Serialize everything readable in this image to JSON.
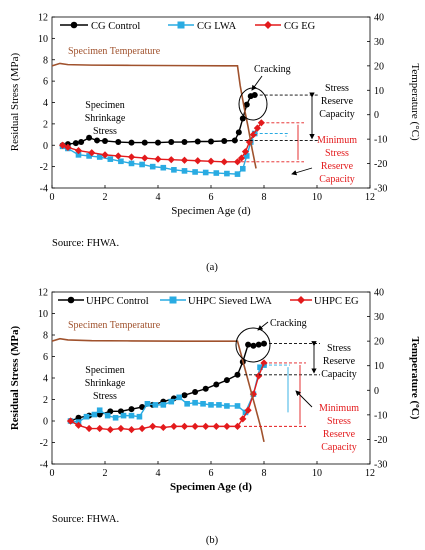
{
  "chart_data": [
    {
      "type": "line",
      "panel_label": "(a)",
      "source": "Source: FHWA.",
      "xlabel": "Specimen Age (d)",
      "ylabel": "Residual Stress (MPa)",
      "y2label": "Temperature (°C)",
      "xlim": [
        0,
        12
      ],
      "ylim": [
        -4,
        12
      ],
      "y2lim": [
        -30,
        40
      ],
      "xticks": [
        "0",
        "2",
        "4",
        "6",
        "8",
        "10",
        "12"
      ],
      "yticks": [
        "12",
        "10",
        "8",
        "6",
        "4",
        "2",
        "0",
        "-2",
        "-4"
      ],
      "y2ticks": [
        "40",
        "30",
        "20",
        "10",
        "0",
        "-10",
        "-20",
        "-30"
      ],
      "legend_placement": "top",
      "series": [
        {
          "name": "CG Control",
          "color": "#000000",
          "marker": "circle",
          "x": [
            0.4,
            0.6,
            0.9,
            1.1,
            1.4,
            1.7,
            2.0,
            2.5,
            3.0,
            3.5,
            4.0,
            4.5,
            5.0,
            5.5,
            6.0,
            6.5,
            6.9,
            7.05,
            7.2,
            7.35,
            7.5,
            7.65
          ],
          "y": [
            0,
            0.1,
            0.2,
            0.3,
            0.7,
            0.45,
            0.4,
            0.3,
            0.25,
            0.25,
            0.25,
            0.3,
            0.3,
            0.35,
            0.35,
            0.4,
            0.45,
            1.2,
            2.5,
            3.8,
            4.6,
            4.7
          ]
        },
        {
          "name": "CG LWA",
          "color": "#29abe2",
          "marker": "square",
          "x": [
            0.4,
            0.6,
            1.0,
            1.4,
            1.8,
            2.2,
            2.6,
            3.0,
            3.4,
            3.8,
            4.2,
            4.6,
            5.0,
            5.4,
            5.8,
            6.2,
            6.6,
            7.0,
            7.2,
            7.35,
            7.5,
            7.65
          ],
          "y": [
            -0.1,
            -0.3,
            -0.9,
            -1.0,
            -1.1,
            -1.3,
            -1.5,
            -1.7,
            -1.8,
            -2.0,
            -2.1,
            -2.3,
            -2.4,
            -2.5,
            -2.55,
            -2.6,
            -2.65,
            -2.7,
            -2.2,
            -1.0,
            0.3,
            1.1
          ]
        },
        {
          "name": "CG EG",
          "color": "#e31a1c",
          "marker": "diamond",
          "x": [
            0.4,
            0.6,
            1.0,
            1.5,
            2.0,
            2.5,
            3.0,
            3.5,
            4.0,
            4.5,
            5.0,
            5.5,
            6.0,
            6.5,
            7.0,
            7.15,
            7.3,
            7.45,
            7.6,
            7.75,
            7.9
          ],
          "y": [
            0,
            -0.2,
            -0.5,
            -0.7,
            -0.9,
            -1.0,
            -1.1,
            -1.2,
            -1.3,
            -1.35,
            -1.4,
            -1.45,
            -1.5,
            -1.55,
            -1.55,
            -1.2,
            -0.6,
            0.3,
            1.0,
            1.6,
            2.1
          ]
        },
        {
          "name": "Specimen Temperature",
          "axis": "right",
          "color": "#a0522d",
          "marker": "none",
          "x": [
            0,
            0.3,
            0.6,
            1.5,
            3,
            5,
            6.5,
            7.0,
            7.1,
            7.25,
            7.4,
            7.55,
            7.7
          ],
          "y": [
            20,
            21,
            20.5,
            20.3,
            20.2,
            20.1,
            20,
            20,
            12,
            3,
            -5,
            -14,
            -22
          ]
        }
      ],
      "annotations": {
        "cracking": "Cracking",
        "shrinkage": [
          "Specimen",
          "Shrinkage",
          "Stress"
        ],
        "reserve": [
          "Stress",
          "Reserve",
          "Capacity"
        ],
        "min_reserve": [
          "Minimum",
          "Stress",
          "Reserve",
          "Capacity"
        ]
      },
      "reserve_levels": {
        "control_peak": 4.7,
        "lwa_peak": 1.1,
        "eg_peak": 2.1,
        "eg_base": -1.55,
        "control_base": 0.45
      }
    },
    {
      "type": "line",
      "panel_label": "(b)",
      "source": "Source: FHWA.",
      "xlabel": "Specimen Age (d)",
      "ylabel": "Residual Stress (MPa)",
      "y2label": "Temperature (ºC)",
      "xlim": [
        0,
        12
      ],
      "ylim": [
        -4,
        12
      ],
      "y2lim": [
        -30,
        40
      ],
      "xticks": [
        "0",
        "2",
        "4",
        "6",
        "8",
        "10",
        "12"
      ],
      "yticks": [
        "12",
        "10",
        "8",
        "6",
        "4",
        "2",
        "0",
        "-2",
        "-4"
      ],
      "y2ticks": [
        "40",
        "30",
        "20",
        "10",
        "0",
        "-10",
        "-20",
        "-30"
      ],
      "legend_placement": "top",
      "series": [
        {
          "name": "UHPC Control",
          "color": "#000000",
          "marker": "circle",
          "x": [
            0.7,
            1.0,
            1.4,
            1.8,
            2.2,
            2.6,
            3.0,
            3.4,
            3.8,
            4.2,
            4.6,
            5.0,
            5.4,
            5.8,
            6.2,
            6.6,
            7.0,
            7.2,
            7.4,
            7.6,
            7.8,
            8.0
          ],
          "y": [
            0,
            0.3,
            0.5,
            0.6,
            0.9,
            0.9,
            1.1,
            1.3,
            1.5,
            1.8,
            2.1,
            2.4,
            2.7,
            3.0,
            3.4,
            3.8,
            4.3,
            5.5,
            7.1,
            7.0,
            7.1,
            7.2
          ]
        },
        {
          "name": "UHPC Sieved LWA",
          "color": "#29abe2",
          "marker": "square",
          "x": [
            0.7,
            1.0,
            1.3,
            1.6,
            1.8,
            2.1,
            2.4,
            2.7,
            3.0,
            3.3,
            3.6,
            3.9,
            4.2,
            4.5,
            4.8,
            5.1,
            5.4,
            5.7,
            6.0,
            6.3,
            6.6,
            7.0,
            7.3,
            7.6,
            7.85,
            8.0
          ],
          "y": [
            0,
            -0.1,
            0.4,
            0.6,
            1.0,
            0.5,
            0.3,
            0.5,
            0.5,
            0.4,
            1.6,
            1.5,
            1.5,
            1.8,
            2.2,
            1.6,
            1.7,
            1.6,
            1.5,
            1.5,
            1.4,
            1.4,
            0.8,
            2.5,
            5.0,
            5.2
          ]
        },
        {
          "name": "UHPC EG",
          "color": "#e31a1c",
          "marker": "diamond",
          "x": [
            0.7,
            1.0,
            1.4,
            1.8,
            2.2,
            2.6,
            3.0,
            3.4,
            3.8,
            4.2,
            4.6,
            5.0,
            5.4,
            5.8,
            6.2,
            6.6,
            7.0,
            7.2,
            7.4,
            7.6,
            7.8,
            8.0
          ],
          "y": [
            0,
            -0.4,
            -0.7,
            -0.7,
            -0.8,
            -0.7,
            -0.8,
            -0.7,
            -0.5,
            -0.6,
            -0.5,
            -0.5,
            -0.5,
            -0.5,
            -0.5,
            -0.5,
            -0.5,
            0.2,
            1.0,
            2.5,
            4.2,
            5.4
          ]
        },
        {
          "name": "Specimen Temperature",
          "axis": "right",
          "color": "#a0522d",
          "marker": "none",
          "x": [
            0,
            0.3,
            0.6,
            1.5,
            3,
            5,
            6.5,
            7.0,
            7.1,
            7.3,
            7.5,
            7.7,
            7.9,
            8.0
          ],
          "y": [
            20,
            21,
            20.5,
            20.2,
            20.1,
            20,
            20,
            20,
            16,
            8,
            0,
            -8,
            -16,
            -21
          ]
        }
      ],
      "annotations": {
        "cracking": "Cracking",
        "shrinkage": [
          "Specimen",
          "Shrinkage",
          "Stress"
        ],
        "reserve": [
          "Stress",
          "Reserve",
          "Capacity"
        ],
        "min_reserve": [
          "Minimum",
          "Stress",
          "Reserve",
          "Capacity"
        ]
      },
      "reserve_levels": {
        "control_peak": 7.2,
        "lwa_peak": 5.2,
        "eg_peak": 5.4,
        "eg_base": -0.5,
        "control_base": 4.3
      }
    }
  ]
}
